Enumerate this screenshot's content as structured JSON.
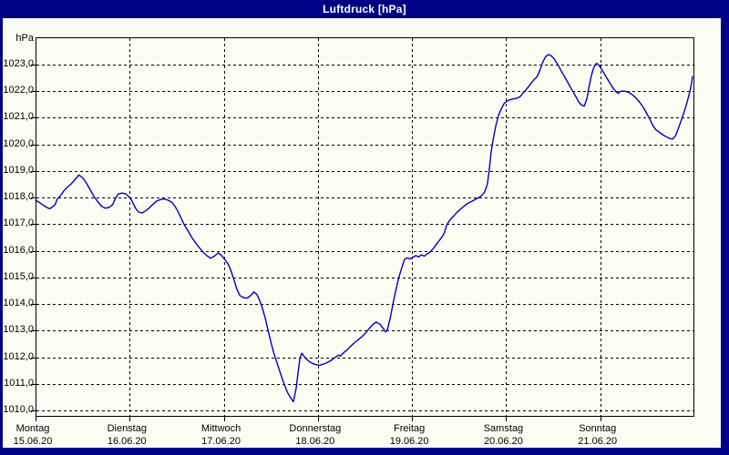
{
  "window": {
    "title": "Luftdruck [hPa]"
  },
  "colors": {
    "frame": "#000084",
    "title_text": "#ffffff",
    "panel_bg": "#fcfdf2",
    "grid": "#000000",
    "axis": "#000000",
    "line": "#0000c4"
  },
  "chart_data": {
    "type": "line",
    "title": "Luftdruck [hPa]",
    "y_unit": "hPa",
    "grid": "dashed",
    "legend": "none",
    "ylim": [
      1009.7,
      1024.0
    ],
    "y_ticks": [
      1023,
      1022,
      1021,
      1020,
      1019,
      1018,
      1017,
      1016,
      1015,
      1014,
      1013,
      1012,
      1011,
      1010
    ],
    "y_tick_labels": [
      "1023,0",
      "1022,0",
      "1021,0",
      "1020,0",
      "1019,0",
      "1018,0",
      "1017,0",
      "1016,0",
      "1015,0",
      "1014,0",
      "1013,0",
      "1012,0",
      "1011,0",
      "1010,0"
    ],
    "x_axis_note": "x in days, 0 = Montag 15.06.20 00:00, 7 = end of Sonntag 21.06.20",
    "days": [
      {
        "name": "Montag",
        "date": "15.06.20"
      },
      {
        "name": "Dienstag",
        "date": "16.06.20"
      },
      {
        "name": "Mittwoch",
        "date": "17.06.20"
      },
      {
        "name": "Donnerstag",
        "date": "18.06.20"
      },
      {
        "name": "Freitag",
        "date": "19.06.20"
      },
      {
        "name": "Samstag",
        "date": "20.06.20"
      },
      {
        "name": "Sonntag",
        "date": "21.06.20"
      }
    ],
    "series": [
      {
        "name": "Luftdruck",
        "color": "#0000c4",
        "points": [
          [
            0.0,
            1017.9
          ],
          [
            0.04,
            1017.82
          ],
          [
            0.08,
            1017.72
          ],
          [
            0.12,
            1017.63
          ],
          [
            0.15,
            1017.58
          ],
          [
            0.18,
            1017.65
          ],
          [
            0.21,
            1017.75
          ],
          [
            0.23,
            1017.95
          ],
          [
            0.26,
            1018.05
          ],
          [
            0.3,
            1018.25
          ],
          [
            0.34,
            1018.4
          ],
          [
            0.38,
            1018.52
          ],
          [
            0.42,
            1018.68
          ],
          [
            0.46,
            1018.85
          ],
          [
            0.5,
            1018.75
          ],
          [
            0.54,
            1018.55
          ],
          [
            0.58,
            1018.3
          ],
          [
            0.62,
            1018.05
          ],
          [
            0.66,
            1017.85
          ],
          [
            0.7,
            1017.68
          ],
          [
            0.74,
            1017.6
          ],
          [
            0.78,
            1017.63
          ],
          [
            0.82,
            1017.74
          ],
          [
            0.85,
            1017.98
          ],
          [
            0.88,
            1018.14
          ],
          [
            0.92,
            1018.17
          ],
          [
            0.96,
            1018.14
          ],
          [
            0.99,
            1018.04
          ],
          [
            1.02,
            1017.9
          ],
          [
            1.06,
            1017.62
          ],
          [
            1.09,
            1017.47
          ],
          [
            1.13,
            1017.42
          ],
          [
            1.17,
            1017.5
          ],
          [
            1.21,
            1017.62
          ],
          [
            1.25,
            1017.76
          ],
          [
            1.29,
            1017.88
          ],
          [
            1.33,
            1017.93
          ],
          [
            1.37,
            1017.95
          ],
          [
            1.41,
            1017.9
          ],
          [
            1.45,
            1017.82
          ],
          [
            1.48,
            1017.68
          ],
          [
            1.51,
            1017.5
          ],
          [
            1.55,
            1017.2
          ],
          [
            1.58,
            1016.98
          ],
          [
            1.62,
            1016.75
          ],
          [
            1.66,
            1016.5
          ],
          [
            1.7,
            1016.3
          ],
          [
            1.74,
            1016.12
          ],
          [
            1.78,
            1015.95
          ],
          [
            1.82,
            1015.82
          ],
          [
            1.86,
            1015.72
          ],
          [
            1.9,
            1015.8
          ],
          [
            1.94,
            1015.92
          ],
          [
            1.97,
            1015.85
          ],
          [
            2.01,
            1015.68
          ],
          [
            2.05,
            1015.48
          ],
          [
            2.08,
            1015.22
          ],
          [
            2.11,
            1014.9
          ],
          [
            2.14,
            1014.55
          ],
          [
            2.17,
            1014.32
          ],
          [
            2.21,
            1014.24
          ],
          [
            2.25,
            1014.22
          ],
          [
            2.29,
            1014.33
          ],
          [
            2.32,
            1014.45
          ],
          [
            2.35,
            1014.37
          ],
          [
            2.38,
            1014.15
          ],
          [
            2.41,
            1013.85
          ],
          [
            2.44,
            1013.48
          ],
          [
            2.47,
            1013.02
          ],
          [
            2.5,
            1012.58
          ],
          [
            2.53,
            1012.18
          ],
          [
            2.56,
            1011.85
          ],
          [
            2.6,
            1011.42
          ],
          [
            2.64,
            1011.0
          ],
          [
            2.68,
            1010.65
          ],
          [
            2.72,
            1010.42
          ],
          [
            2.74,
            1010.33
          ],
          [
            2.77,
            1010.85
          ],
          [
            2.79,
            1011.45
          ],
          [
            2.81,
            1011.98
          ],
          [
            2.83,
            1012.15
          ],
          [
            2.86,
            1012.0
          ],
          [
            2.9,
            1011.86
          ],
          [
            2.94,
            1011.77
          ],
          [
            2.98,
            1011.72
          ],
          [
            3.02,
            1011.7
          ],
          [
            3.06,
            1011.74
          ],
          [
            3.1,
            1011.8
          ],
          [
            3.14,
            1011.88
          ],
          [
            3.18,
            1011.98
          ],
          [
            3.22,
            1012.08
          ],
          [
            3.24,
            1012.04
          ],
          [
            3.27,
            1012.16
          ],
          [
            3.31,
            1012.28
          ],
          [
            3.35,
            1012.42
          ],
          [
            3.39,
            1012.55
          ],
          [
            3.43,
            1012.66
          ],
          [
            3.47,
            1012.78
          ],
          [
            3.51,
            1012.92
          ],
          [
            3.55,
            1013.1
          ],
          [
            3.59,
            1013.25
          ],
          [
            3.62,
            1013.32
          ],
          [
            3.66,
            1013.24
          ],
          [
            3.69,
            1013.1
          ],
          [
            3.72,
            1012.95
          ],
          [
            3.74,
            1013.05
          ],
          [
            3.77,
            1013.5
          ],
          [
            3.8,
            1014.05
          ],
          [
            3.83,
            1014.55
          ],
          [
            3.86,
            1015.0
          ],
          [
            3.89,
            1015.35
          ],
          [
            3.92,
            1015.68
          ],
          [
            3.95,
            1015.73
          ],
          [
            3.98,
            1015.7
          ],
          [
            4.01,
            1015.76
          ],
          [
            4.04,
            1015.82
          ],
          [
            4.07,
            1015.77
          ],
          [
            4.1,
            1015.85
          ],
          [
            4.13,
            1015.8
          ],
          [
            4.16,
            1015.88
          ],
          [
            4.19,
            1015.95
          ],
          [
            4.23,
            1016.1
          ],
          [
            4.27,
            1016.3
          ],
          [
            4.31,
            1016.48
          ],
          [
            4.34,
            1016.65
          ],
          [
            4.37,
            1016.98
          ],
          [
            4.4,
            1017.15
          ],
          [
            4.44,
            1017.3
          ],
          [
            4.48,
            1017.45
          ],
          [
            4.52,
            1017.58
          ],
          [
            4.56,
            1017.7
          ],
          [
            4.6,
            1017.8
          ],
          [
            4.64,
            1017.87
          ],
          [
            4.68,
            1017.95
          ],
          [
            4.71,
            1018.0
          ],
          [
            4.74,
            1018.08
          ],
          [
            4.77,
            1018.2
          ],
          [
            4.8,
            1018.5
          ],
          [
            4.82,
            1019.0
          ],
          [
            4.84,
            1019.7
          ],
          [
            4.86,
            1020.15
          ],
          [
            4.89,
            1020.7
          ],
          [
            4.92,
            1021.1
          ],
          [
            4.95,
            1021.35
          ],
          [
            4.98,
            1021.55
          ],
          [
            5.01,
            1021.63
          ],
          [
            5.04,
            1021.68
          ],
          [
            5.08,
            1021.71
          ],
          [
            5.12,
            1021.74
          ],
          [
            5.15,
            1021.8
          ],
          [
            5.18,
            1021.93
          ],
          [
            5.21,
            1022.05
          ],
          [
            5.24,
            1022.18
          ],
          [
            5.27,
            1022.32
          ],
          [
            5.3,
            1022.45
          ],
          [
            5.33,
            1022.55
          ],
          [
            5.36,
            1022.8
          ],
          [
            5.39,
            1023.1
          ],
          [
            5.42,
            1023.3
          ],
          [
            5.45,
            1023.38
          ],
          [
            5.48,
            1023.33
          ],
          [
            5.51,
            1023.22
          ],
          [
            5.54,
            1023.05
          ],
          [
            5.58,
            1022.8
          ],
          [
            5.62,
            1022.55
          ],
          [
            5.66,
            1022.3
          ],
          [
            5.7,
            1022.05
          ],
          [
            5.74,
            1021.8
          ],
          [
            5.77,
            1021.6
          ],
          [
            5.8,
            1021.48
          ],
          [
            5.83,
            1021.44
          ],
          [
            5.86,
            1021.75
          ],
          [
            5.88,
            1022.15
          ],
          [
            5.9,
            1022.5
          ],
          [
            5.92,
            1022.78
          ],
          [
            5.94,
            1022.95
          ],
          [
            5.96,
            1023.05
          ],
          [
            5.98,
            1023.0
          ],
          [
            6.01,
            1022.85
          ],
          [
            6.04,
            1022.68
          ],
          [
            6.07,
            1022.5
          ],
          [
            6.1,
            1022.32
          ],
          [
            6.13,
            1022.15
          ],
          [
            6.16,
            1022.0
          ],
          [
            6.19,
            1021.92
          ],
          [
            6.22,
            1022.0
          ],
          [
            6.26,
            1022.0
          ],
          [
            6.3,
            1021.96
          ],
          [
            6.34,
            1021.87
          ],
          [
            6.38,
            1021.74
          ],
          [
            6.42,
            1021.58
          ],
          [
            6.46,
            1021.38
          ],
          [
            6.5,
            1021.12
          ],
          [
            6.53,
            1020.92
          ],
          [
            6.56,
            1020.7
          ],
          [
            6.59,
            1020.55
          ],
          [
            6.63,
            1020.45
          ],
          [
            6.67,
            1020.35
          ],
          [
            6.71,
            1020.27
          ],
          [
            6.74,
            1020.22
          ],
          [
            6.77,
            1020.2
          ],
          [
            6.8,
            1020.32
          ],
          [
            6.83,
            1020.6
          ],
          [
            6.86,
            1020.9
          ],
          [
            6.89,
            1021.2
          ],
          [
            6.92,
            1021.55
          ],
          [
            6.95,
            1021.95
          ],
          [
            6.97,
            1022.3
          ],
          [
            6.98,
            1022.55
          ]
        ]
      }
    ]
  }
}
